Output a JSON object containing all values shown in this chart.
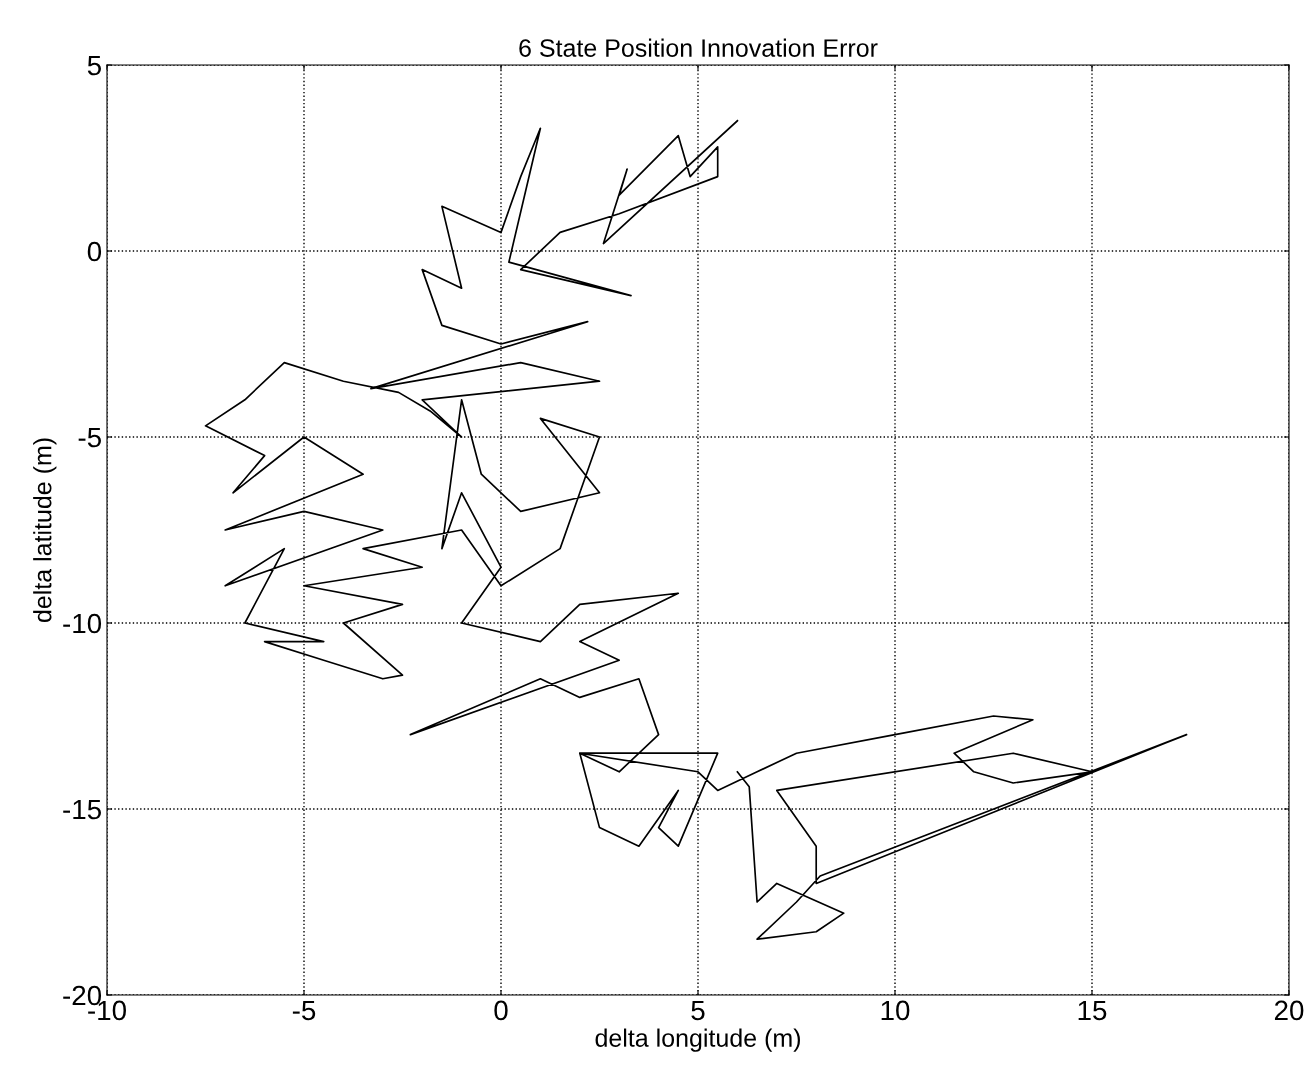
{
  "chart_data": {
    "type": "line",
    "title": "6 State Position Innovation Error",
    "xlabel": "delta longitude (m)",
    "ylabel": "delta latitude (m)",
    "xlim": [
      -10,
      20
    ],
    "xticks": [
      -10,
      -5,
      0,
      5,
      10,
      15,
      20
    ],
    "ylim": [
      -20,
      5
    ],
    "yticks": [
      -20,
      -15,
      -10,
      -5,
      0,
      5
    ],
    "grid": true,
    "legend": false,
    "marker": "none",
    "line_style": "solid",
    "series": [
      {
        "color": "#000000",
        "x": [
          6.0,
          2.6,
          3.2,
          3.0,
          4.5,
          4.8,
          5.5,
          5.5,
          3.0,
          1.5,
          0.5,
          3.3,
          0.2,
          1.0,
          0.5,
          0.0,
          -1.5,
          -1.0,
          -2.0,
          -1.5,
          0.0,
          2.2,
          -3.3,
          0.5,
          2.5,
          -2.0,
          -1.0,
          -1.8,
          -2.6,
          -4.0,
          -5.5,
          -6.5,
          -7.5,
          -6.0,
          -6.8,
          -5.0,
          -3.5,
          -7.0,
          -5.0,
          -3.0,
          -7.0,
          -5.5,
          -6.5,
          -4.5,
          -6.0,
          -4.5,
          -3.0,
          -2.5,
          -4.0,
          -2.5,
          -5.0,
          -2.0,
          -3.5,
          -1.0,
          0.0,
          1.5,
          2.5,
          1.0,
          2.5,
          0.5,
          -0.5,
          -1.0,
          -1.5,
          -1.0,
          0.0,
          -1.0,
          1.0,
          2.0,
          4.5,
          2.0,
          3.0,
          -2.3,
          1.0,
          2.0,
          3.5,
          4.0,
          3.0,
          2.0,
          2.5,
          3.5,
          4.5,
          4.0,
          4.5,
          5.5,
          2.0,
          5.0,
          5.5,
          6.5,
          7.5,
          10.0,
          12.5,
          13.5,
          11.5,
          12.0,
          13.0,
          15.0,
          17.4,
          15.0,
          13.0,
          7.0,
          8.0,
          8.0,
          17.4,
          8.1,
          7.5,
          6.5,
          8.0,
          8.7,
          7.0,
          6.5,
          6.3,
          6.0
        ],
        "values": [
          3.5,
          0.2,
          2.2,
          1.5,
          3.1,
          2.0,
          2.8,
          2.0,
          1.0,
          0.5,
          -0.5,
          -1.2,
          -0.3,
          3.3,
          2.0,
          0.5,
          1.2,
          -1.0,
          -0.5,
          -2.0,
          -2.5,
          -1.9,
          -3.7,
          -3.0,
          -3.5,
          -4.0,
          -5.0,
          -4.3,
          -3.8,
          -3.5,
          -3.0,
          -4.0,
          -4.7,
          -5.5,
          -6.5,
          -5.0,
          -6.0,
          -7.5,
          -7.0,
          -7.5,
          -9.0,
          -8.0,
          -10.0,
          -10.5,
          -10.5,
          -11.0,
          -11.5,
          -11.4,
          -10.0,
          -9.5,
          -9.0,
          -8.5,
          -8.0,
          -7.5,
          -9.0,
          -8.0,
          -5.0,
          -4.5,
          -6.5,
          -7.0,
          -6.0,
          -4.0,
          -8.0,
          -6.5,
          -8.5,
          -10.0,
          -10.5,
          -9.5,
          -9.2,
          -10.5,
          -11.0,
          -13.0,
          -11.5,
          -12.0,
          -11.5,
          -13.0,
          -14.0,
          -13.5,
          -15.5,
          -16.0,
          -14.5,
          -15.5,
          -16.0,
          -13.5,
          -13.5,
          -14.0,
          -14.5,
          -14.0,
          -13.5,
          -13.0,
          -12.5,
          -12.6,
          -13.5,
          -14.0,
          -14.3,
          -14.0,
          -13.0,
          -14.0,
          -13.5,
          -14.5,
          -16.0,
          -17.0,
          -13.0,
          -16.8,
          -17.5,
          -18.5,
          -18.3,
          -17.8,
          -17.0,
          -17.5,
          -14.4,
          -14.0
        ]
      }
    ]
  }
}
